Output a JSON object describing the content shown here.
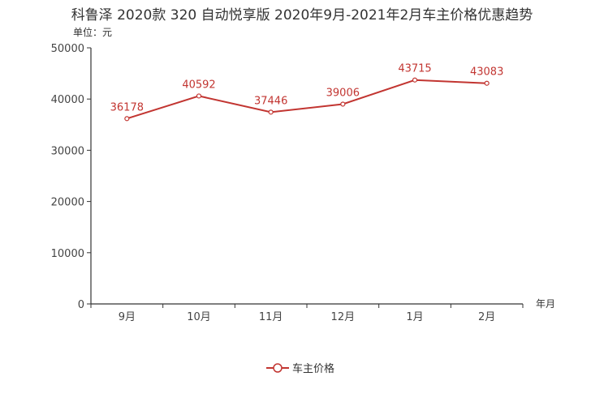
{
  "title": "科鲁泽 2020款 320 自动悦享版 2020年9月-2021年2月车主价格优惠趋势",
  "unit_label": "单位：元",
  "colors": {
    "series": "#c23531",
    "axis": "#333333",
    "text": "#444444"
  },
  "chart_data": {
    "type": "line",
    "title": "科鲁泽 2020款 320 自动悦享版 2020年9月-2021年2月车主价格优惠趋势",
    "xlabel": "年月",
    "ylabel": "单位：元",
    "categories": [
      "9月",
      "10月",
      "11月",
      "12月",
      "1月",
      "2月"
    ],
    "series": [
      {
        "name": "车主价格",
        "values": [
          36178,
          40592,
          37446,
          39006,
          43715,
          43083
        ]
      }
    ],
    "ylim": [
      0,
      50000
    ],
    "yticks": [
      0,
      10000,
      20000,
      30000,
      40000,
      50000
    ],
    "legend": "bottom-center",
    "grid": false
  }
}
